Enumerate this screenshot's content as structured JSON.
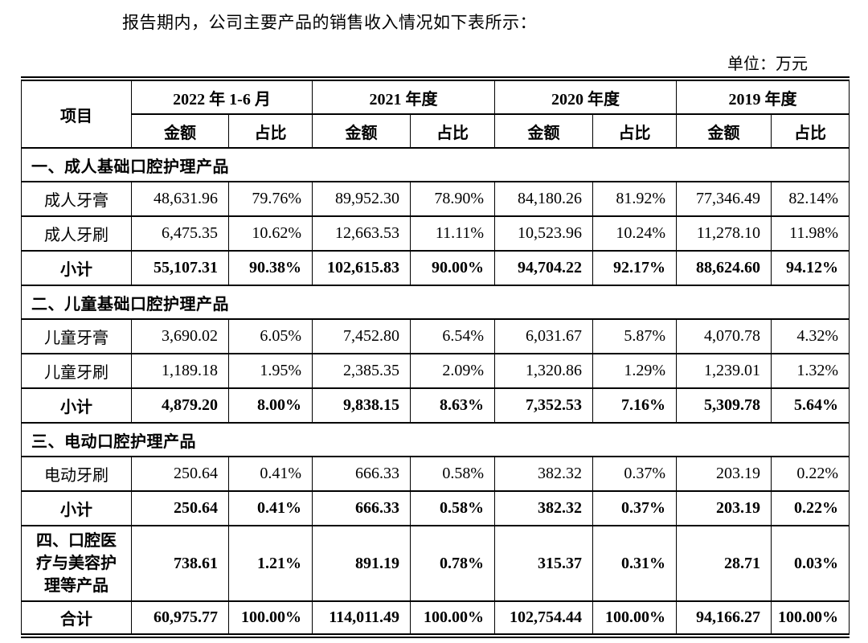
{
  "intro": "报告期内，公司主要产品的销售收入情况如下表所示：",
  "unit_label": "单位：万元",
  "table": {
    "item_header": "项目",
    "period_headers": [
      "2022 年 1-6 月",
      "2021 年度",
      "2020 年度",
      "2019 年度"
    ],
    "sub_headers": {
      "amount": "金额",
      "ratio": "占比"
    },
    "sections": [
      {
        "title": "一、成人基础口腔护理产品",
        "rows": [
          {
            "label": "成人牙膏",
            "bold": false,
            "values": [
              "48,631.96",
              "79.76%",
              "89,952.30",
              "78.90%",
              "84,180.26",
              "81.92%",
              "77,346.49",
              "82.14%"
            ]
          },
          {
            "label": "成人牙刷",
            "bold": false,
            "values": [
              "6,475.35",
              "10.62%",
              "12,663.53",
              "11.11%",
              "10,523.96",
              "10.24%",
              "11,278.10",
              "11.98%"
            ]
          },
          {
            "label": "小计",
            "bold": true,
            "values": [
              "55,107.31",
              "90.38%",
              "102,615.83",
              "90.00%",
              "94,704.22",
              "92.17%",
              "88,624.60",
              "94.12%"
            ]
          }
        ]
      },
      {
        "title": "二、儿童基础口腔护理产品",
        "rows": [
          {
            "label": "儿童牙膏",
            "bold": false,
            "values": [
              "3,690.02",
              "6.05%",
              "7,452.80",
              "6.54%",
              "6,031.67",
              "5.87%",
              "4,070.78",
              "4.32%"
            ]
          },
          {
            "label": "儿童牙刷",
            "bold": false,
            "values": [
              "1,189.18",
              "1.95%",
              "2,385.35",
              "2.09%",
              "1,320.86",
              "1.29%",
              "1,239.01",
              "1.32%"
            ]
          },
          {
            "label": "小计",
            "bold": true,
            "values": [
              "4,879.20",
              "8.00%",
              "9,838.15",
              "8.63%",
              "7,352.53",
              "7.16%",
              "5,309.78",
              "5.64%"
            ]
          }
        ]
      },
      {
        "title": "三、电动口腔护理产品",
        "rows": [
          {
            "label": "电动牙刷",
            "bold": false,
            "values": [
              "250.64",
              "0.41%",
              "666.33",
              "0.58%",
              "382.32",
              "0.37%",
              "203.19",
              "0.22%"
            ]
          },
          {
            "label": "小计",
            "bold": true,
            "values": [
              "250.64",
              "0.41%",
              "666.33",
              "0.58%",
              "382.32",
              "0.37%",
              "203.19",
              "0.22%"
            ]
          }
        ]
      }
    ],
    "extra_rows": [
      {
        "label": "四、口腔医疗与美容护理等产品",
        "bold": true,
        "tall": true,
        "values": [
          "738.61",
          "1.21%",
          "891.19",
          "0.78%",
          "315.37",
          "0.31%",
          "28.71",
          "0.03%"
        ]
      },
      {
        "label": "合计",
        "bold": true,
        "tall": false,
        "values": [
          "60,975.77",
          "100.00%",
          "114,011.49",
          "100.00%",
          "102,754.44",
          "100.00%",
          "94,166.27",
          "100.00%"
        ]
      }
    ]
  }
}
